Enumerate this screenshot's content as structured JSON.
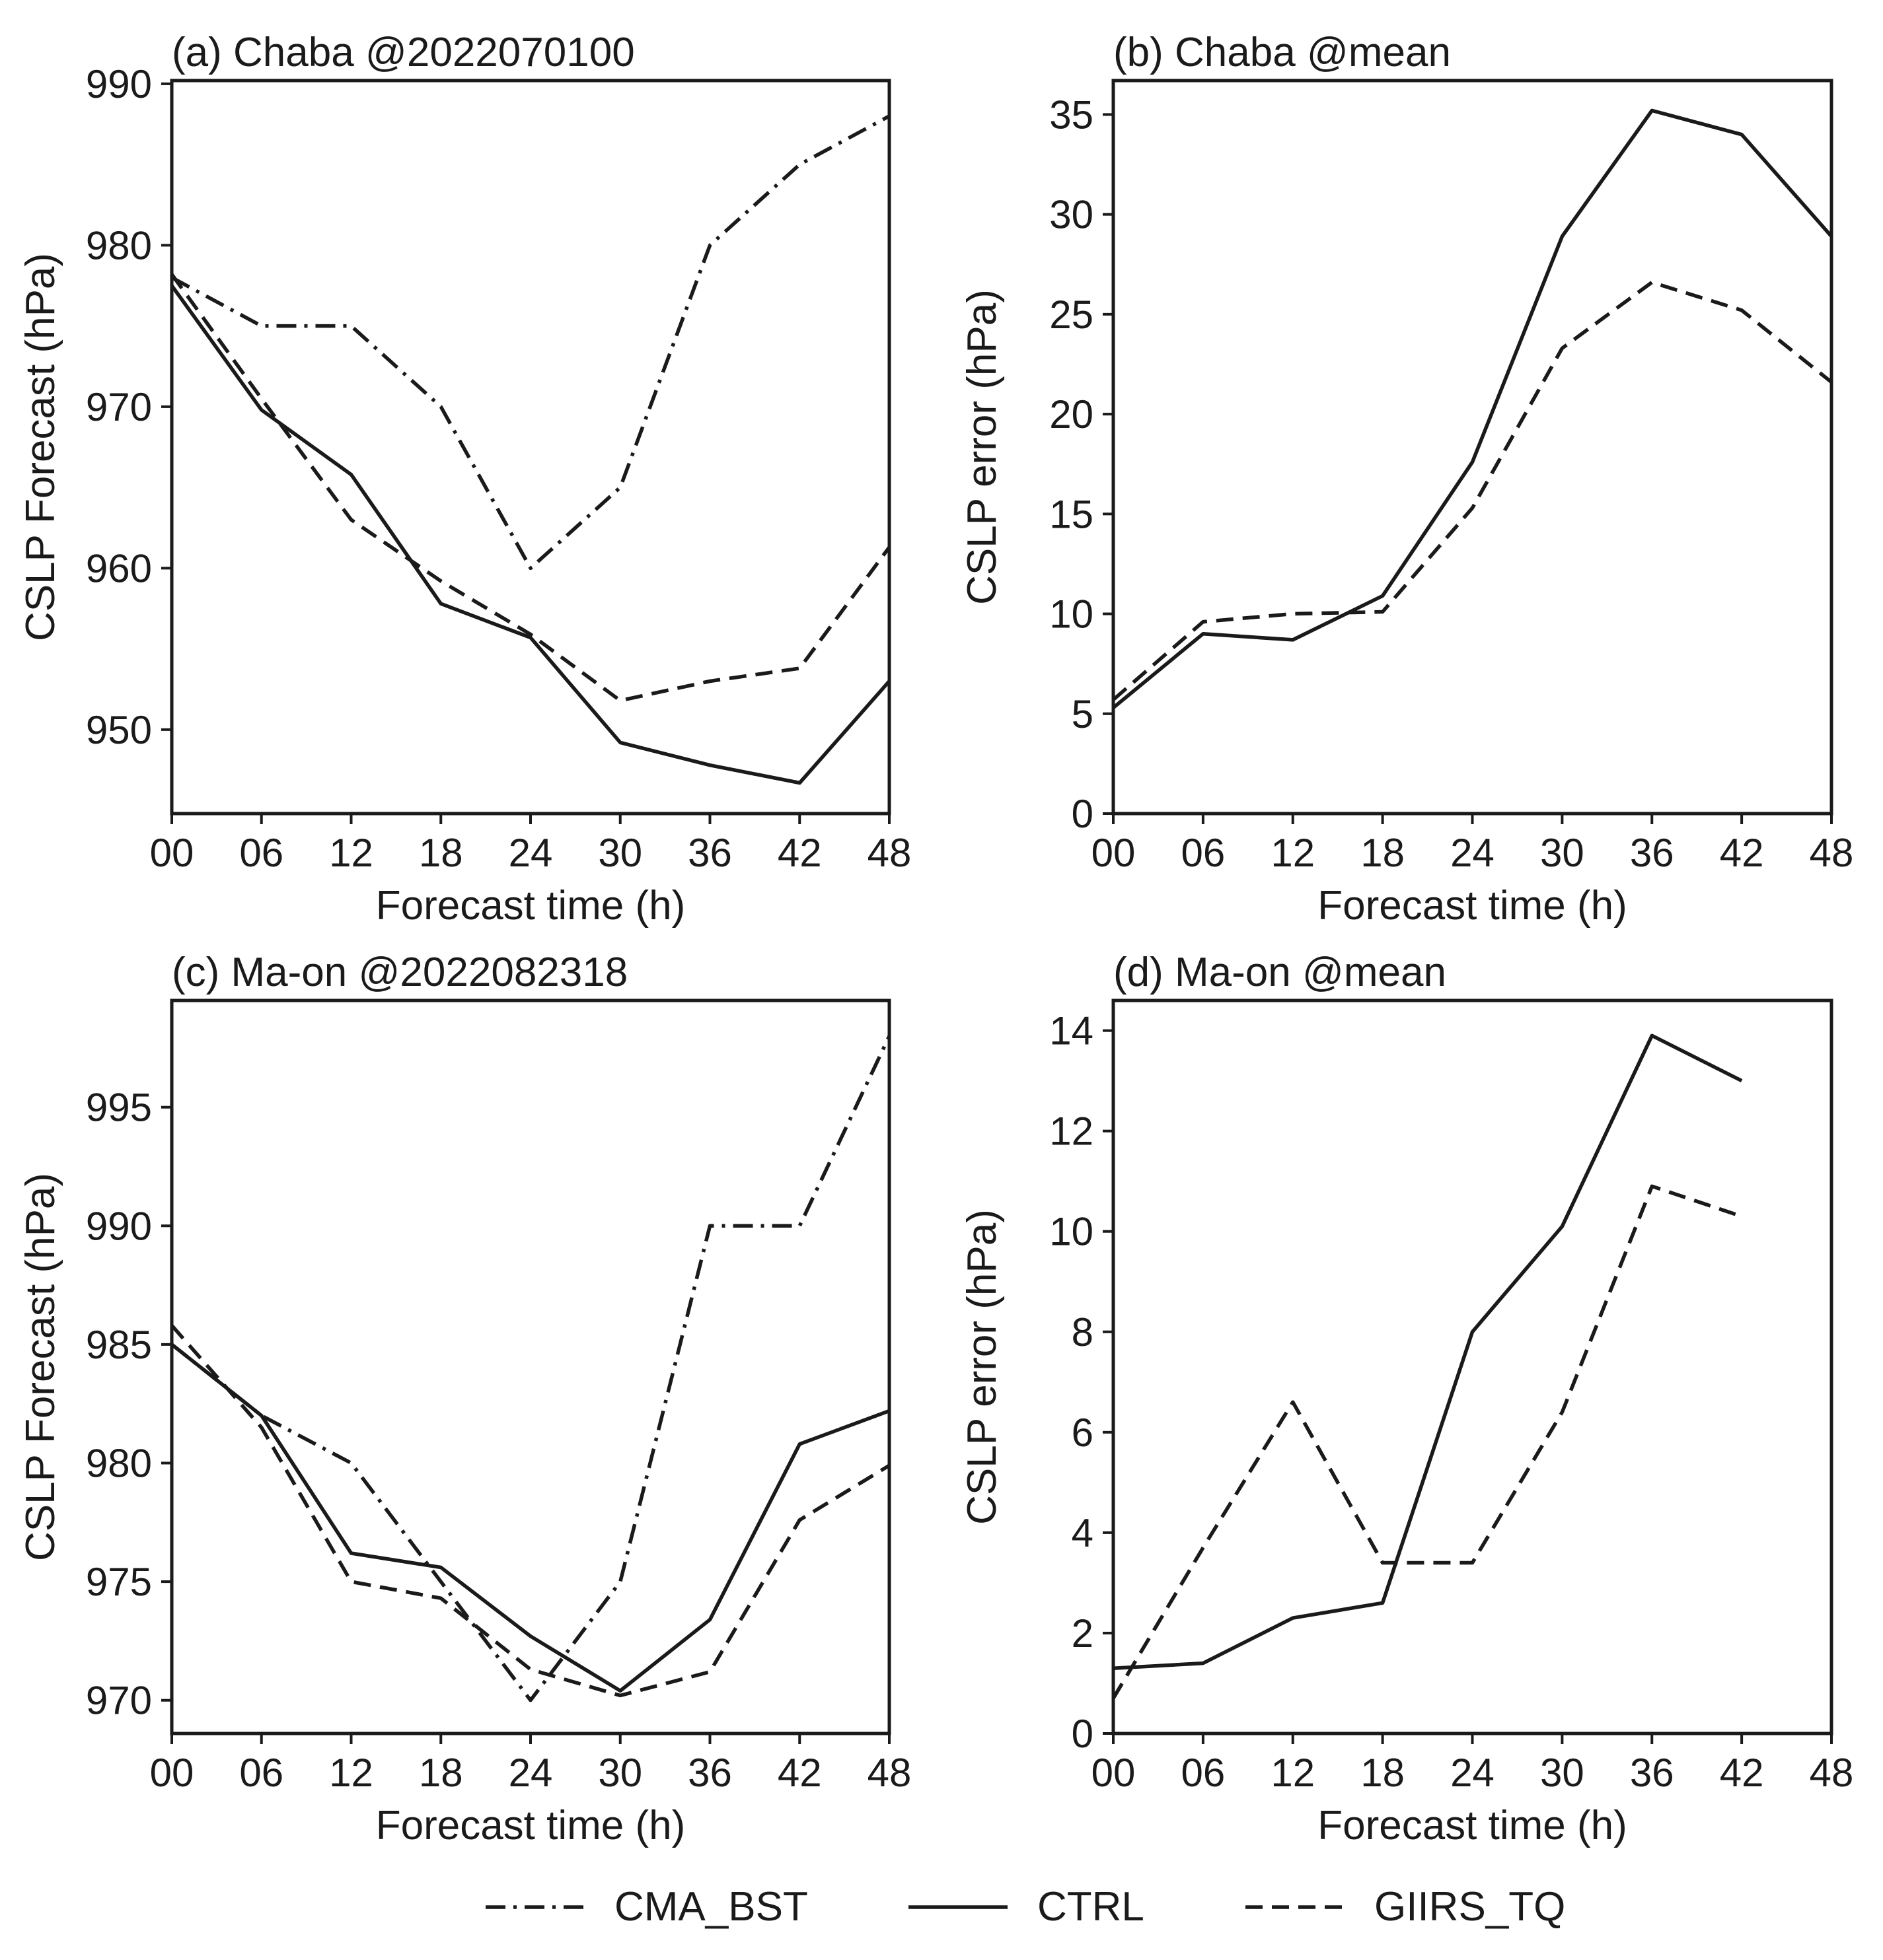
{
  "chart_data": [
    {
      "type": "line",
      "title": "(a) Chaba @2022070100",
      "xlabel": "Forecast time (h)",
      "ylabel": "CSLP Forecast (hPa)",
      "x": [
        0,
        6,
        12,
        18,
        24,
        30,
        36,
        42,
        48
      ],
      "xtick_labels": [
        "00",
        "06",
        "12",
        "18",
        "24",
        "30",
        "36",
        "42",
        "48"
      ],
      "yticks": [
        950,
        960,
        970,
        980,
        990
      ],
      "ylim": [
        944.8,
        990.2
      ],
      "xlim": [
        0,
        48
      ],
      "series": [
        {
          "name": "CMA_BST",
          "style": "dashdot",
          "values": [
            978.0,
            975.0,
            975.0,
            970.0,
            960.0,
            965.0,
            980.0,
            985.0,
            988.0
          ]
        },
        {
          "name": "CTRL",
          "style": "solid",
          "values": [
            977.5,
            969.8,
            965.8,
            957.8,
            955.7,
            949.2,
            947.8,
            946.7,
            953.0
          ]
        },
        {
          "name": "GIIRS_TQ",
          "style": "dashed",
          "values": [
            978.2,
            970.5,
            963.0,
            959.2,
            955.9,
            951.8,
            953.0,
            953.8,
            961.3
          ]
        }
      ]
    },
    {
      "type": "line",
      "title": "(b) Chaba @mean",
      "xlabel": "Forecast time (h)",
      "ylabel": "CSLP error (hPa)",
      "x": [
        0,
        6,
        12,
        18,
        24,
        30,
        36,
        42,
        48
      ],
      "xtick_labels": [
        "00",
        "06",
        "12",
        "18",
        "24",
        "30",
        "36",
        "42",
        "48"
      ],
      "yticks": [
        0,
        5,
        10,
        15,
        20,
        25,
        30,
        35
      ],
      "ylim": [
        0,
        36.7
      ],
      "xlim": [
        0,
        48
      ],
      "series": [
        {
          "name": "CTRL",
          "style": "solid",
          "values": [
            5.3,
            9.0,
            8.7,
            10.9,
            17.6,
            28.9,
            35.2,
            34.0,
            28.9
          ]
        },
        {
          "name": "GIIRS_TQ",
          "style": "dashed",
          "values": [
            5.7,
            9.6,
            10.0,
            10.1,
            15.3,
            23.3,
            26.6,
            25.2,
            21.6
          ]
        }
      ]
    },
    {
      "type": "line",
      "title": "(c) Ma-on @2022082318",
      "xlabel": "Forecast time (h)",
      "ylabel": "CSLP Forecast (hPa)",
      "x": [
        0,
        6,
        12,
        18,
        24,
        30,
        36,
        42,
        48
      ],
      "xtick_labels": [
        "00",
        "06",
        "12",
        "18",
        "24",
        "30",
        "36",
        "42",
        "48"
      ],
      "yticks": [
        970,
        975,
        980,
        985,
        990,
        995
      ],
      "ylim": [
        968.6,
        999.5
      ],
      "xlim": [
        0,
        48
      ],
      "series": [
        {
          "name": "CMA_BST",
          "style": "dashdot",
          "values": [
            985.0,
            982.0,
            980.0,
            975.0,
            970.0,
            975.0,
            990.0,
            990.0,
            998.0
          ]
        },
        {
          "name": "CTRL",
          "style": "solid",
          "values": [
            985.0,
            982.0,
            976.2,
            975.6,
            972.7,
            970.4,
            973.4,
            980.8,
            982.2
          ]
        },
        {
          "name": "GIIRS_TQ",
          "style": "dashed",
          "values": [
            985.8,
            981.5,
            975.0,
            974.3,
            971.3,
            970.2,
            971.2,
            977.6,
            979.9
          ]
        }
      ]
    },
    {
      "type": "line",
      "title": "(d) Ma-on @mean",
      "xlabel": "Forecast time (h)",
      "ylabel": "CSLP error (hPa)",
      "x": [
        0,
        6,
        12,
        18,
        24,
        30,
        36,
        42
      ],
      "xtick_labels": [
        "00",
        "06",
        "12",
        "18",
        "24",
        "30",
        "36",
        "42",
        "48"
      ],
      "yticks": [
        0,
        2,
        4,
        6,
        8,
        10,
        12,
        14
      ],
      "ylim": [
        0,
        14.6
      ],
      "xlim": [
        0,
        48
      ],
      "series": [
        {
          "name": "CTRL",
          "style": "solid",
          "values": [
            1.3,
            1.4,
            2.3,
            2.6,
            8.0,
            10.1,
            13.9,
            13.0
          ]
        },
        {
          "name": "GIIRS_TQ",
          "style": "dashed",
          "values": [
            0.7,
            3.7,
            6.6,
            3.4,
            3.4,
            6.4,
            10.9,
            10.3
          ]
        }
      ]
    }
  ],
  "legend": {
    "position": "bottom-center",
    "entries": [
      {
        "label": "CMA_BST",
        "style": "dashdot"
      },
      {
        "label": "CTRL",
        "style": "solid"
      },
      {
        "label": "GIIRS_TQ",
        "style": "dashed"
      }
    ]
  }
}
